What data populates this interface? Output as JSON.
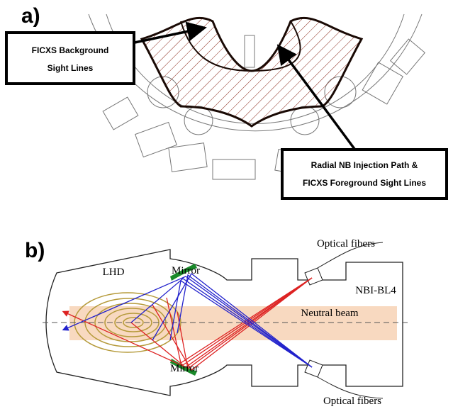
{
  "panels": [
    {
      "label": "a)",
      "callouts": [
        {
          "lines": [
            "FICXS Background",
            "Sight Lines"
          ]
        },
        {
          "lines": [
            "Radial NB Injection Path &",
            "FICXS Foreground Sight Lines"
          ]
        }
      ]
    },
    {
      "label": "b)",
      "labels": {
        "fibers_top": "Optical fibers",
        "lhd": "LHD",
        "mirror_top": "Mirror",
        "nbi": "NBI-BL4",
        "beam": "Neutral beam",
        "mirror_bottom": "Mirror",
        "fibers_bottom": "Optical fibers"
      }
    }
  ]
}
